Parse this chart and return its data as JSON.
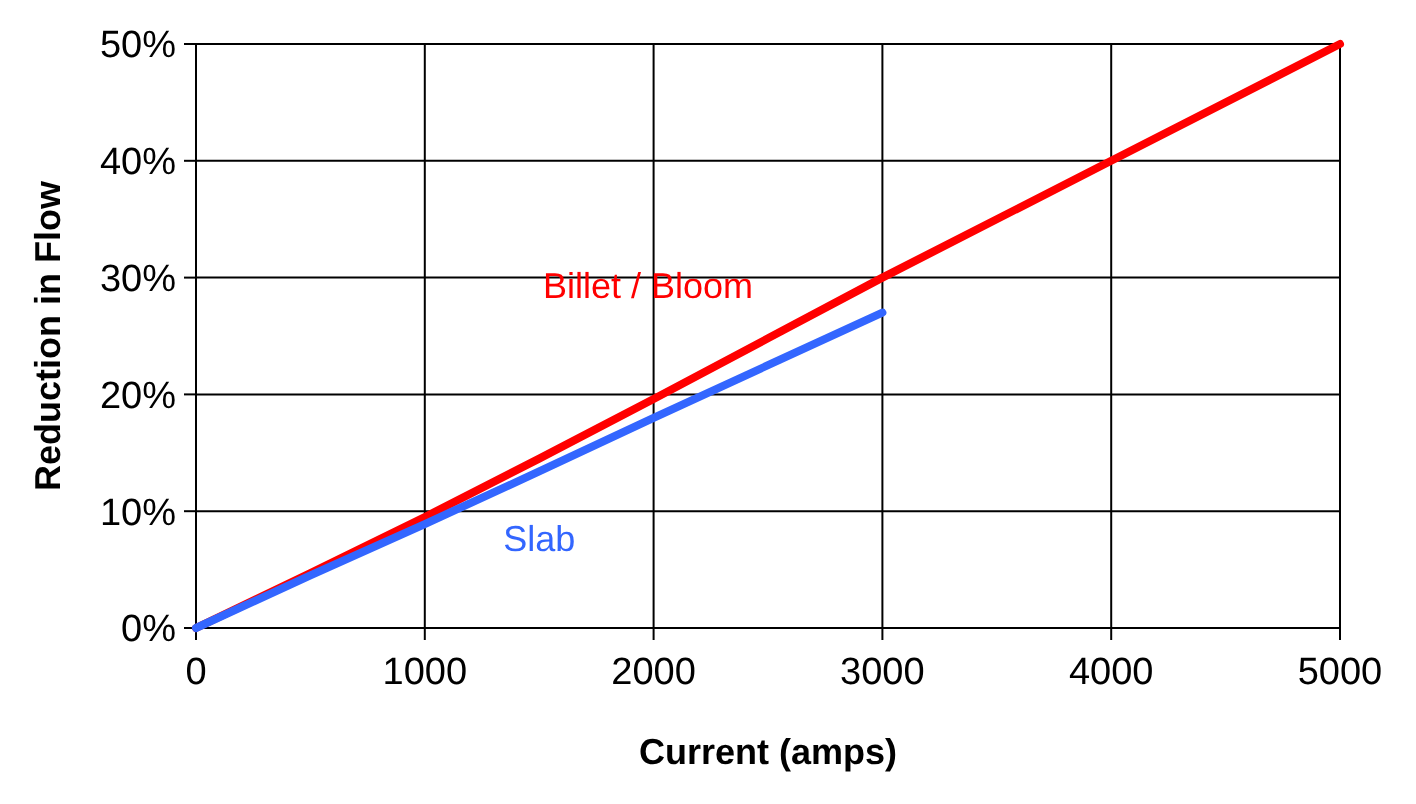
{
  "chart_data": {
    "type": "line",
    "xlabel": "Current (amps)",
    "ylabel": "Reduction in Flow",
    "series": [
      {
        "name": "Billet / Bloom",
        "color": "#ff0000",
        "x": [
          0,
          500,
          1000,
          1500,
          2000,
          2500,
          3000,
          4000,
          5000
        ],
        "values": [
          0,
          4.7,
          9.5,
          14.5,
          19.6,
          24.8,
          30,
          40,
          50
        ]
      },
      {
        "name": "Slab",
        "color": "#3366ff",
        "x": [
          0,
          500,
          1000,
          1500,
          2000,
          2500,
          3000
        ],
        "values": [
          0,
          4.5,
          8.9,
          13.4,
          18,
          22.5,
          27
        ]
      }
    ],
    "xlim": [
      0,
      5000
    ],
    "xticks": [
      0,
      1000,
      2000,
      3000,
      4000,
      5000
    ],
    "ylim": [
      0,
      50
    ],
    "yticks": [
      {
        "value": 0,
        "label": "0%"
      },
      {
        "value": 10,
        "label": "10%"
      },
      {
        "value": 20,
        "label": "20%"
      },
      {
        "value": 30,
        "label": "30%"
      },
      {
        "value": 40,
        "label": "40%"
      },
      {
        "value": 50,
        "label": "50%"
      }
    ],
    "grid": true,
    "legend": false,
    "marker": "none",
    "line_style": "solid"
  }
}
